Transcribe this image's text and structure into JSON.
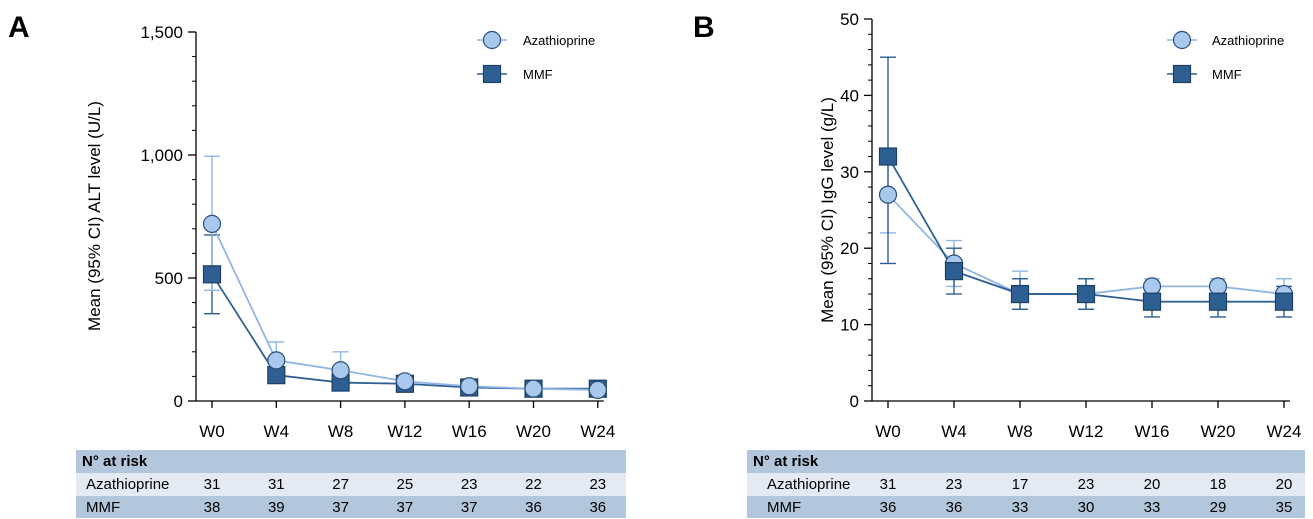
{
  "panels": [
    {
      "label": "A",
      "risk_table": {
        "header": "N° at risk",
        "rows": [
          {
            "name": "Azathioprine",
            "values": [
              "31",
              "31",
              "27",
              "25",
              "23",
              "22",
              "23"
            ]
          },
          {
            "name": "MMF",
            "values": [
              "38",
              "39",
              "37",
              "37",
              "37",
              "36",
              "36"
            ]
          }
        ]
      }
    },
    {
      "label": "B",
      "risk_table": {
        "header": "N° at risk",
        "rows": [
          {
            "name": "Azathioprine",
            "values": [
              "31",
              "23",
              "17",
              "23",
              "20",
              "18",
              "20"
            ]
          },
          {
            "name": "MMF",
            "values": [
              "36",
              "36",
              "33",
              "30",
              "33",
              "29",
              "35"
            ]
          }
        ]
      }
    }
  ],
  "colors": {
    "azathioprine": "#a8c8ee",
    "azathioprine_line": "#8fb6e4",
    "mmf": "#2e5f93",
    "risk_header_bg": "#b3c7dc",
    "risk_row1_bg": "#e3eaf3",
    "risk_row2_bg": "#b3c7dc"
  },
  "chart_data": [
    {
      "type": "line",
      "title": "",
      "xlabel": "",
      "ylabel": "Mean (95% CI) ALT level (U/L)",
      "categories": [
        "W0",
        "W4",
        "W8",
        "W12",
        "W16",
        "W20",
        "W24"
      ],
      "ylim": [
        0,
        1500
      ],
      "yticks": [
        0,
        500,
        1000,
        1500
      ],
      "ytick_labels": [
        "0",
        "500",
        "1,000",
        "1,500"
      ],
      "grid": false,
      "legend_position": "top-right",
      "series": [
        {
          "name": "Azathioprine",
          "marker": "circle",
          "values": [
            720,
            165,
            125,
            80,
            60,
            50,
            45
          ],
          "ci_low": [
            450,
            100,
            70,
            60,
            45,
            38,
            35
          ],
          "ci_high": [
            995,
            240,
            200,
            100,
            75,
            65,
            55
          ]
        },
        {
          "name": "MMF",
          "marker": "square",
          "values": [
            515,
            105,
            75,
            70,
            55,
            50,
            50
          ],
          "ci_low": [
            355,
            75,
            55,
            55,
            45,
            40,
            40
          ],
          "ci_high": [
            675,
            135,
            95,
            85,
            65,
            60,
            60
          ]
        }
      ]
    },
    {
      "type": "line",
      "title": "",
      "xlabel": "",
      "ylabel": "Mean (95% CI) IgG level (g/L)",
      "categories": [
        "W0",
        "W4",
        "W8",
        "W12",
        "W16",
        "W20",
        "W24"
      ],
      "ylim": [
        0,
        50
      ],
      "yticks": [
        0,
        10,
        20,
        30,
        40,
        50
      ],
      "ytick_labels": [
        "0",
        "10",
        "20",
        "30",
        "40",
        "50"
      ],
      "grid": false,
      "legend_position": "top-right",
      "series": [
        {
          "name": "Azathioprine",
          "marker": "circle",
          "values": [
            27,
            18,
            14,
            14,
            15,
            15,
            14
          ],
          "ci_low": [
            22,
            15,
            12,
            12,
            13,
            13,
            12
          ],
          "ci_high": [
            32,
            21,
            17,
            16,
            16,
            16,
            16
          ]
        },
        {
          "name": "MMF",
          "marker": "square",
          "values": [
            32,
            17,
            14,
            14,
            13,
            13,
            13
          ],
          "ci_low": [
            18,
            14,
            12,
            12,
            11,
            11,
            11
          ],
          "ci_high": [
            45,
            20,
            16,
            16,
            15,
            15,
            15
          ]
        }
      ]
    }
  ]
}
